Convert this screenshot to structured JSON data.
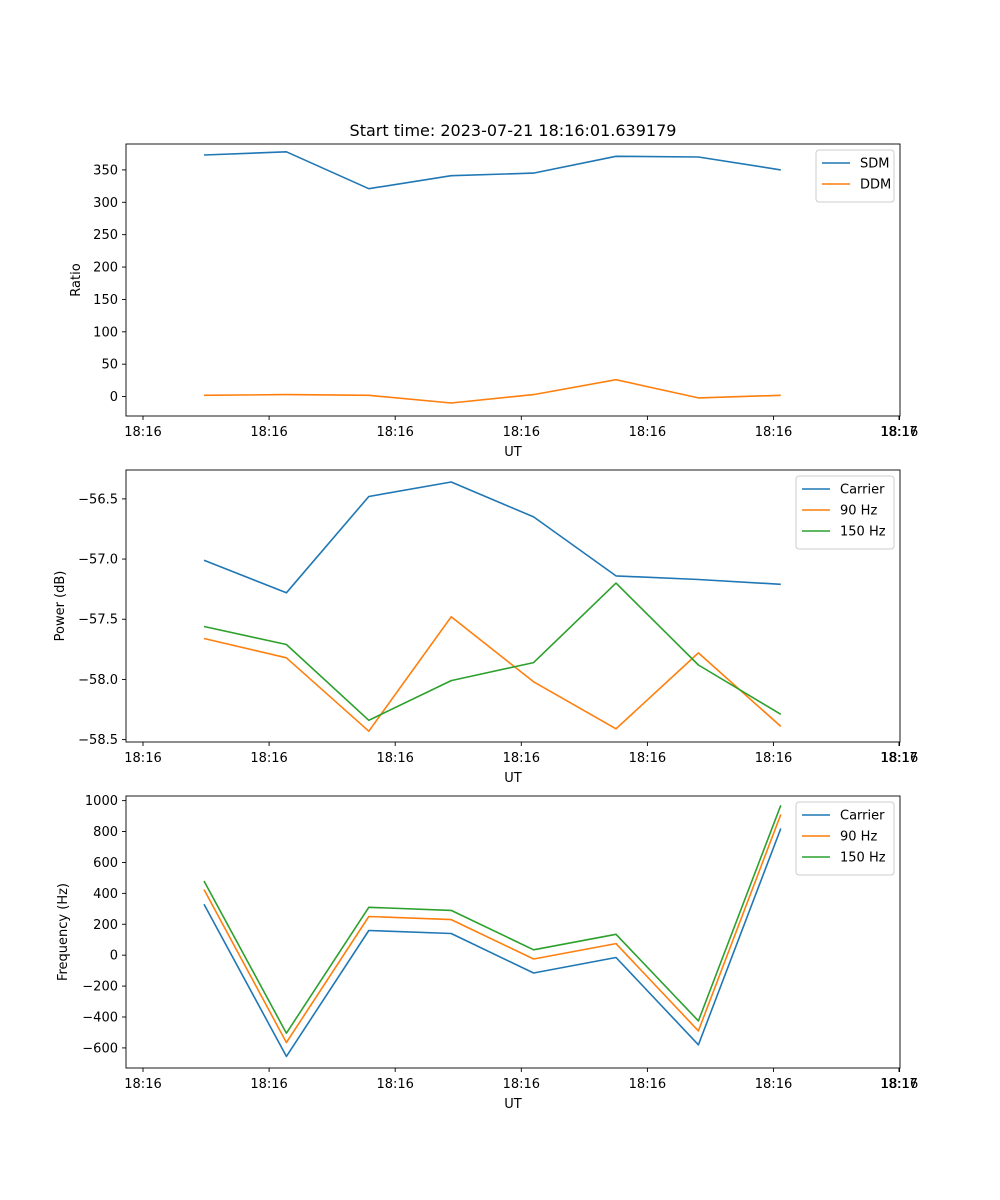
{
  "chart_data": [
    {
      "type": "line",
      "title": "Start time: 2023-07-21 18:16:01.639179",
      "xlabel": "UT",
      "ylabel": "Ratio",
      "x_ticks": [
        "18:16",
        "18:16",
        "18:16",
        "18:16",
        "18:16",
        "18:16",
        "18:16"
      ],
      "x_extra_tick": "18:17",
      "ylim": [
        -30,
        390
      ],
      "y_ticks": [
        0,
        50,
        100,
        150,
        200,
        250,
        300,
        350
      ],
      "legend_position": "top-right",
      "x": [
        1,
        2,
        3,
        4,
        5,
        6,
        7,
        8
      ],
      "series": [
        {
          "name": "SDM",
          "color": "#1f77b4",
          "values": [
            373,
            378,
            321,
            341,
            345,
            371,
            370,
            350
          ]
        },
        {
          "name": "DDM",
          "color": "#ff7f0e",
          "values": [
            2,
            3,
            2,
            -10,
            3,
            26,
            -2,
            2
          ]
        }
      ]
    },
    {
      "type": "line",
      "title": "",
      "xlabel": "UT",
      "ylabel": "Power (dB)",
      "x_ticks": [
        "18:16",
        "18:16",
        "18:16",
        "18:16",
        "18:16",
        "18:16",
        "18:16"
      ],
      "x_extra_tick": "18:17",
      "ylim": [
        -58.52,
        -56.26
      ],
      "y_ticks": [
        "-58.5",
        "-58.0",
        "-57.5",
        "-57.0",
        "-56.5"
      ],
      "y_tick_values": [
        -58.5,
        -58.0,
        -57.5,
        -57.0,
        -56.5
      ],
      "legend_position": "top-right",
      "x": [
        1,
        2,
        3,
        4,
        5,
        6,
        7,
        8
      ],
      "series": [
        {
          "name": "Carrier",
          "color": "#1f77b4",
          "values": [
            -57.01,
            -57.28,
            -56.48,
            -56.36,
            -56.65,
            -57.14,
            -57.17,
            -57.21
          ]
        },
        {
          "name": "90 Hz",
          "color": "#ff7f0e",
          "values": [
            -57.66,
            -57.82,
            -58.43,
            -57.48,
            -58.02,
            -58.41,
            -57.78,
            -58.39
          ]
        },
        {
          "name": "150 Hz",
          "color": "#2ca02c",
          "values": [
            -57.56,
            -57.71,
            -58.34,
            -58.01,
            -57.86,
            -57.2,
            -57.88,
            -58.29
          ]
        }
      ]
    },
    {
      "type": "line",
      "title": "",
      "xlabel": "UT",
      "ylabel": "Frequency (Hz)",
      "x_ticks": [
        "18:16",
        "18:16",
        "18:16",
        "18:16",
        "18:16",
        "18:16",
        "18:16"
      ],
      "x_extra_tick": "18:17",
      "ylim": [
        -730,
        1030
      ],
      "y_ticks": [
        -600,
        -400,
        -200,
        0,
        200,
        400,
        600,
        800,
        1000
      ],
      "legend_position": "top-right",
      "x": [
        1,
        2,
        3,
        4,
        5,
        6,
        7,
        8
      ],
      "series": [
        {
          "name": "Carrier",
          "color": "#1f77b4",
          "values": [
            330,
            -655,
            160,
            140,
            -115,
            -15,
            -580,
            820
          ]
        },
        {
          "name": "90 Hz",
          "color": "#ff7f0e",
          "values": [
            425,
            -565,
            250,
            230,
            -25,
            75,
            -490,
            910
          ]
        },
        {
          "name": "150 Hz",
          "color": "#2ca02c",
          "values": [
            480,
            -505,
            310,
            290,
            35,
            135,
            -425,
            970
          ]
        }
      ]
    }
  ]
}
